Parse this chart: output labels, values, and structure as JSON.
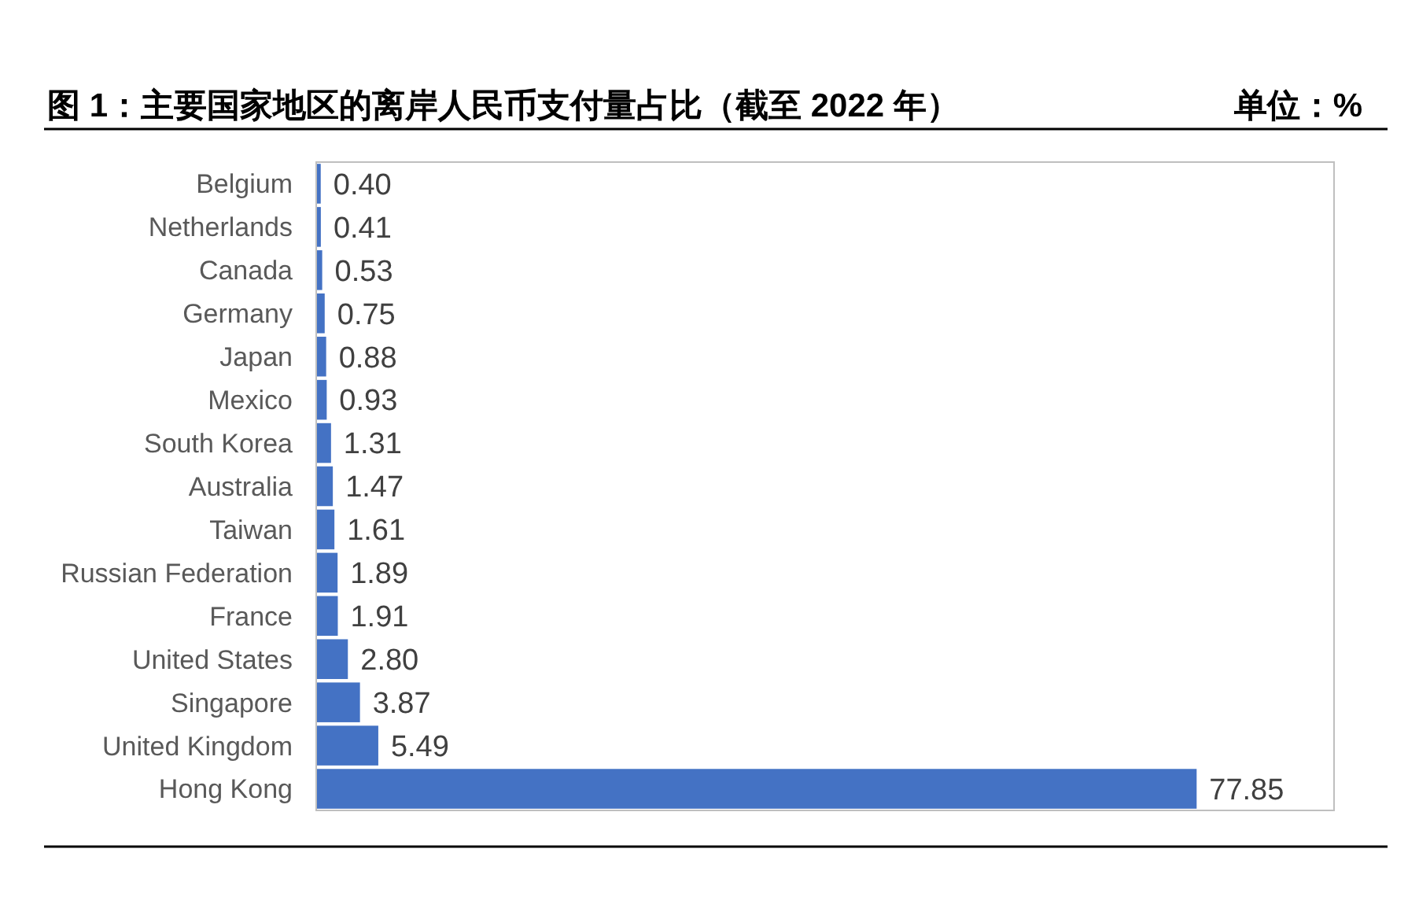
{
  "chart_data": {
    "type": "bar",
    "orientation": "horizontal",
    "title": "图 1：主要国家地区的离岸人民币支付量占比（截至 2022 年）",
    "subtitle": "单位：%",
    "categories": [
      "Belgium",
      "Netherlands",
      "Canada",
      "Germany",
      "Japan",
      "Mexico",
      "South Korea",
      "Australia",
      "Taiwan",
      "Russian Federation",
      "France",
      "United States",
      "Singapore",
      "United Kingdom",
      "Hong Kong"
    ],
    "values": [
      0.4,
      0.41,
      0.53,
      0.75,
      0.88,
      0.93,
      1.31,
      1.47,
      1.61,
      1.89,
      1.91,
      2.8,
      3.87,
      5.49,
      77.85
    ],
    "value_labels": [
      "0.40",
      "0.41",
      "0.53",
      "0.75",
      "0.88",
      "0.93",
      "1.31",
      "1.47",
      "1.61",
      "1.89",
      "1.91",
      "2.80",
      "3.87",
      "5.49",
      "77.85"
    ],
    "color": "#4472c4",
    "xlim": [
      0,
      90
    ],
    "tick_labels": "y"
  }
}
